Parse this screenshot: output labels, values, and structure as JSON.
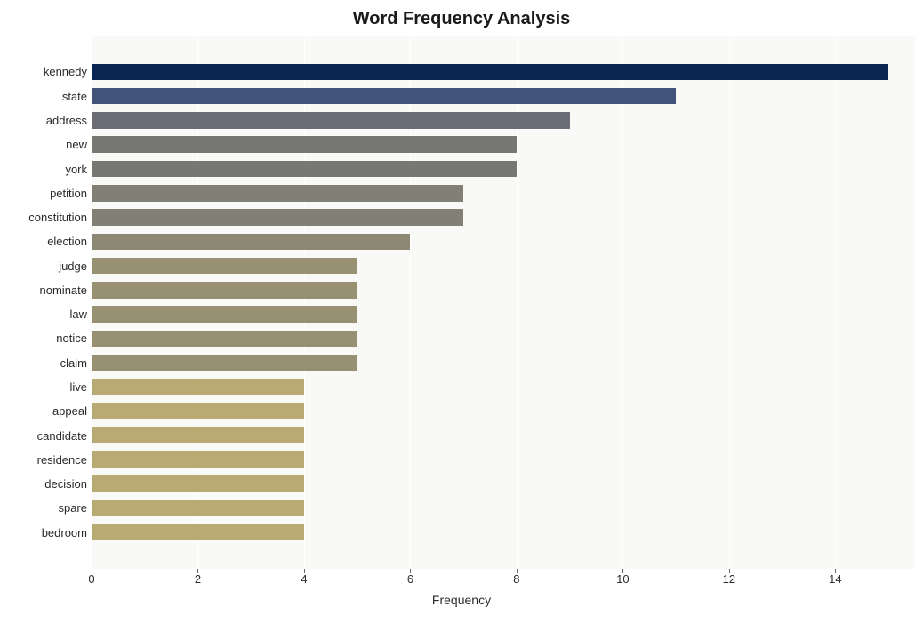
{
  "chart": {
    "type": "bar-horizontal",
    "title": "Word Frequency Analysis",
    "title_fontsize": 20,
    "title_fontweight": "bold",
    "xlabel": "Frequency",
    "xlabel_fontsize": 14,
    "background_color": "#ffffff",
    "plot_background": "#f9f9f7",
    "grid_color": "#ffffff",
    "xlim": [
      0,
      15.5
    ],
    "xtick_step": 2,
    "xticks": [
      0,
      2,
      4,
      6,
      8,
      10,
      12,
      14
    ],
    "label_fontsize": 13,
    "tick_color": "#2a2a2a",
    "bar_height_ratio": 0.68,
    "rows_total": 22,
    "data": [
      {
        "label": "kennedy",
        "value": 15,
        "color": "#0a2652"
      },
      {
        "label": "state",
        "value": 11,
        "color": "#42537a"
      },
      {
        "label": "address",
        "value": 9,
        "color": "#6b6c75"
      },
      {
        "label": "new",
        "value": 8,
        "color": "#777774"
      },
      {
        "label": "york",
        "value": 8,
        "color": "#777774"
      },
      {
        "label": "petition",
        "value": 7,
        "color": "#827f74"
      },
      {
        "label": "constitution",
        "value": 7,
        "color": "#827f74"
      },
      {
        "label": "election",
        "value": 6,
        "color": "#8d8873"
      },
      {
        "label": "judge",
        "value": 5,
        "color": "#989072"
      },
      {
        "label": "nominate",
        "value": 5,
        "color": "#989072"
      },
      {
        "label": "law",
        "value": 5,
        "color": "#989072"
      },
      {
        "label": "notice",
        "value": 5,
        "color": "#989072"
      },
      {
        "label": "claim",
        "value": 5,
        "color": "#989072"
      },
      {
        "label": "live",
        "value": 4,
        "color": "#b9aa73"
      },
      {
        "label": "appeal",
        "value": 4,
        "color": "#b9aa73"
      },
      {
        "label": "candidate",
        "value": 4,
        "color": "#b9aa73"
      },
      {
        "label": "residence",
        "value": 4,
        "color": "#b9aa73"
      },
      {
        "label": "decision",
        "value": 4,
        "color": "#b9aa73"
      },
      {
        "label": "spare",
        "value": 4,
        "color": "#b9aa73"
      },
      {
        "label": "bedroom",
        "value": 4,
        "color": "#b9aa73"
      }
    ]
  }
}
